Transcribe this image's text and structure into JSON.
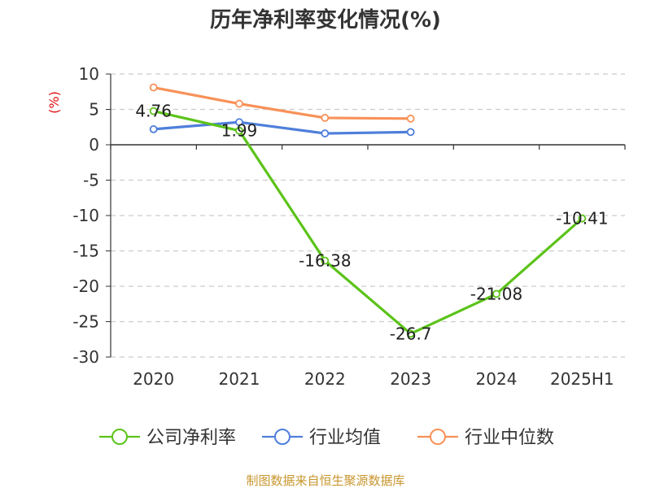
{
  "chart_data": {
    "type": "line",
    "title": "历年净利率变化情况(%)",
    "ylabel": "(%)",
    "xlabel": "",
    "categories": [
      "2020",
      "2021",
      "2022",
      "2023",
      "2024",
      "2025H1"
    ],
    "ylim": [
      -30,
      10
    ],
    "yticks": [
      10,
      5,
      0,
      -5,
      -10,
      -15,
      -20,
      -25,
      -30
    ],
    "grid": true,
    "legend_position": "bottom",
    "series": [
      {
        "name": "公司净利率",
        "color": "#5cc31a",
        "values": [
          4.76,
          1.99,
          -16.38,
          -26.7,
          -21.08,
          -10.41
        ],
        "labels": [
          "4.76",
          "1.99",
          "-16.38",
          "-26.7",
          "-21.08",
          "-10.41"
        ]
      },
      {
        "name": "行业均值",
        "color": "#4f7fda",
        "values": [
          2.2,
          3.2,
          1.6,
          1.8,
          null,
          null
        ]
      },
      {
        "name": "行业中位数",
        "color": "#f89158",
        "values": [
          8.1,
          5.8,
          3.8,
          3.7,
          null,
          null
        ]
      }
    ]
  },
  "source": "制图数据来自恒生聚源数据库"
}
